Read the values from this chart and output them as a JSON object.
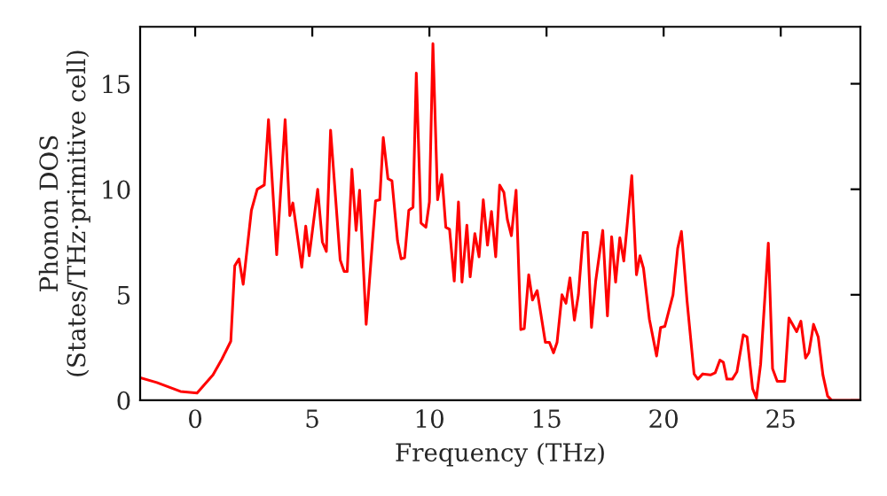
{
  "chart_data": {
    "type": "line",
    "xlabel": "Frequency (THz)",
    "ylabel": "Phonon DOS\n(States/THz·primitive cell)",
    "xlim": [
      -2.35,
      28.4
    ],
    "ylim": [
      0,
      17.7
    ],
    "xticks": [
      0,
      5,
      10,
      15,
      20,
      25
    ],
    "yticks": [
      0,
      5,
      10,
      15
    ],
    "grid": false,
    "legend": false,
    "series": [
      {
        "color": "#ff0000",
        "x": [
          -2.35,
          -1.64,
          -0.63,
          0.08,
          0.76,
          1.14,
          1.52,
          1.69,
          1.87,
          2.05,
          2.4,
          2.65,
          2.95,
          3.13,
          3.48,
          3.84,
          4.04,
          4.17,
          4.55,
          4.72,
          4.87,
          5.23,
          5.43,
          5.6,
          5.78,
          6.19,
          6.36,
          6.49,
          6.69,
          6.87,
          7.02,
          7.3,
          7.7,
          7.88,
          8.03,
          8.23,
          8.4,
          8.64,
          8.79,
          8.94,
          9.12,
          9.3,
          9.44,
          9.64,
          9.85,
          10.0,
          10.15,
          10.35,
          10.53,
          10.7,
          10.86,
          11.06,
          11.24,
          11.39,
          11.6,
          11.74,
          11.94,
          12.12,
          12.3,
          12.48,
          12.65,
          12.83,
          13.0,
          13.18,
          13.33,
          13.5,
          13.7,
          13.9,
          14.05,
          14.24,
          14.4,
          14.6,
          14.95,
          15.12,
          15.3,
          15.45,
          15.66,
          15.83,
          16.0,
          16.19,
          16.36,
          16.57,
          16.74,
          16.92,
          17.1,
          17.4,
          17.6,
          17.78,
          17.95,
          18.13,
          18.3,
          18.64,
          18.84,
          18.99,
          19.14,
          19.39,
          19.7,
          19.87,
          20.05,
          20.4,
          20.6,
          20.76,
          21.0,
          21.3,
          21.46,
          21.67,
          22.0,
          22.2,
          22.4,
          22.55,
          22.7,
          22.93,
          23.13,
          23.4,
          23.56,
          23.8,
          23.96,
          24.14,
          24.47,
          24.65,
          24.85,
          25.17,
          25.35,
          25.68,
          25.86,
          26.06,
          26.2,
          26.4,
          26.6,
          26.8,
          27.0,
          27.17,
          28.4
        ],
        "values": [
          1.07,
          0.84,
          0.42,
          0.34,
          1.2,
          1.95,
          2.8,
          6.37,
          6.7,
          5.5,
          9.0,
          10.0,
          10.2,
          13.3,
          6.9,
          13.3,
          8.75,
          9.35,
          6.3,
          8.25,
          6.85,
          10.0,
          7.5,
          7.05,
          12.8,
          6.65,
          6.1,
          6.1,
          10.95,
          8.05,
          9.95,
          3.6,
          9.45,
          9.5,
          12.45,
          10.5,
          10.4,
          7.55,
          6.7,
          6.75,
          9.0,
          9.15,
          15.5,
          8.4,
          8.2,
          9.4,
          16.9,
          9.5,
          10.7,
          8.2,
          8.1,
          5.65,
          9.4,
          5.6,
          8.3,
          5.85,
          7.9,
          6.8,
          9.5,
          7.35,
          8.95,
          6.8,
          10.2,
          9.85,
          8.55,
          7.8,
          9.95,
          3.35,
          3.4,
          5.95,
          4.75,
          5.2,
          2.75,
          2.75,
          2.25,
          2.75,
          5.0,
          4.6,
          5.8,
          3.8,
          5.0,
          7.95,
          7.95,
          3.45,
          5.65,
          8.05,
          4.0,
          7.75,
          5.6,
          7.7,
          6.6,
          10.65,
          5.95,
          6.85,
          6.25,
          3.85,
          2.1,
          3.45,
          3.5,
          5.0,
          7.2,
          8.0,
          4.7,
          1.25,
          1.0,
          1.25,
          1.2,
          1.3,
          1.9,
          1.8,
          1.0,
          1.0,
          1.35,
          3.1,
          3.0,
          0.55,
          0.1,
          1.7,
          7.45,
          1.5,
          0.9,
          0.9,
          3.9,
          3.25,
          3.75,
          2.0,
          2.25,
          3.6,
          3.0,
          1.2,
          0.2,
          0.0,
          0.0
        ]
      }
    ]
  }
}
